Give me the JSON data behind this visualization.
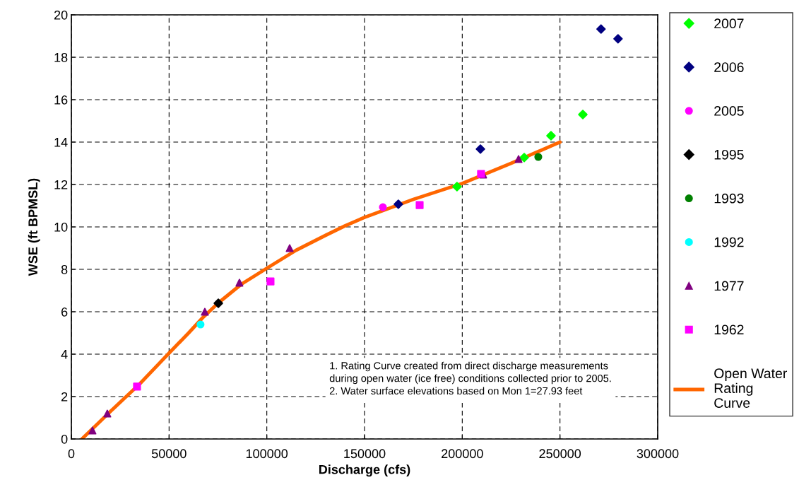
{
  "chart_data": {
    "type": "scatter",
    "xlabel": "Discharge (cfs)",
    "ylabel": "WSE (ft BPMSL)",
    "xlim": [
      0,
      300000
    ],
    "ylim": [
      0,
      20
    ],
    "xticks": [
      0,
      50000,
      100000,
      150000,
      200000,
      250000,
      300000
    ],
    "yticks": [
      0,
      2,
      4,
      6,
      8,
      10,
      12,
      14,
      16,
      18,
      20
    ],
    "grid": true,
    "legend": "right",
    "annotations": [
      "1. Rating Curve created from direct discharge measurements\nduring open water (ice free) conditions collected prior to 2005.\n2. Water surface elevations based on Mon 1=27.93 feet"
    ],
    "series": [
      {
        "name": "2007",
        "color": "#00ff00",
        "marker": "diamond",
        "x": [
          197300,
          231700,
          245400,
          261700
        ],
        "values": [
          11.9,
          13.27,
          14.3,
          15.3
        ]
      },
      {
        "name": "2006",
        "color": "#000080",
        "marker": "diamond",
        "x": [
          167300,
          209300,
          271000,
          279700
        ],
        "values": [
          11.07,
          13.67,
          19.33,
          18.87
        ]
      },
      {
        "name": "2005",
        "color": "#ff00ff",
        "marker": "circle",
        "x": [
          159400
        ],
        "values": [
          10.93
        ]
      },
      {
        "name": "1995",
        "color": "#000000",
        "marker": "diamond",
        "x": [
          75200
        ],
        "values": [
          6.4
        ]
      },
      {
        "name": "1993",
        "color": "#008000",
        "marker": "circle",
        "x": [
          238900
        ],
        "values": [
          13.3
        ]
      },
      {
        "name": "1992",
        "color": "#00ffff",
        "marker": "circle",
        "x": [
          66100
        ],
        "values": [
          5.4
        ]
      },
      {
        "name": "1977",
        "color": "#800080",
        "marker": "triangle",
        "x": [
          10800,
          18400,
          68300,
          86000,
          111700,
          210700,
          228800
        ],
        "values": [
          0.4,
          1.2,
          6.0,
          7.37,
          9.0,
          12.47,
          13.2
        ]
      },
      {
        "name": "1962",
        "color": "#ff00ff",
        "marker": "square",
        "x": [
          33600,
          101900,
          178200,
          209600
        ],
        "values": [
          2.47,
          7.43,
          11.03,
          12.5
        ]
      },
      {
        "name": "Open Water\nRating\nCurve",
        "type": "line",
        "color": "#ff6600",
        "marker": "none",
        "x": [
          5400,
          20000,
          35000,
          50000,
          60000,
          67000,
          75000,
          87000,
          100000,
          115000,
          130000,
          140000,
          150000,
          175000,
          200000,
          225000,
          250000
        ],
        "values": [
          0,
          1.3,
          2.6,
          4.05,
          5.0,
          5.7,
          6.4,
          7.3,
          8.05,
          8.9,
          9.6,
          10.05,
          10.45,
          11.3,
          12.05,
          13.0,
          14.0
        ]
      }
    ]
  }
}
